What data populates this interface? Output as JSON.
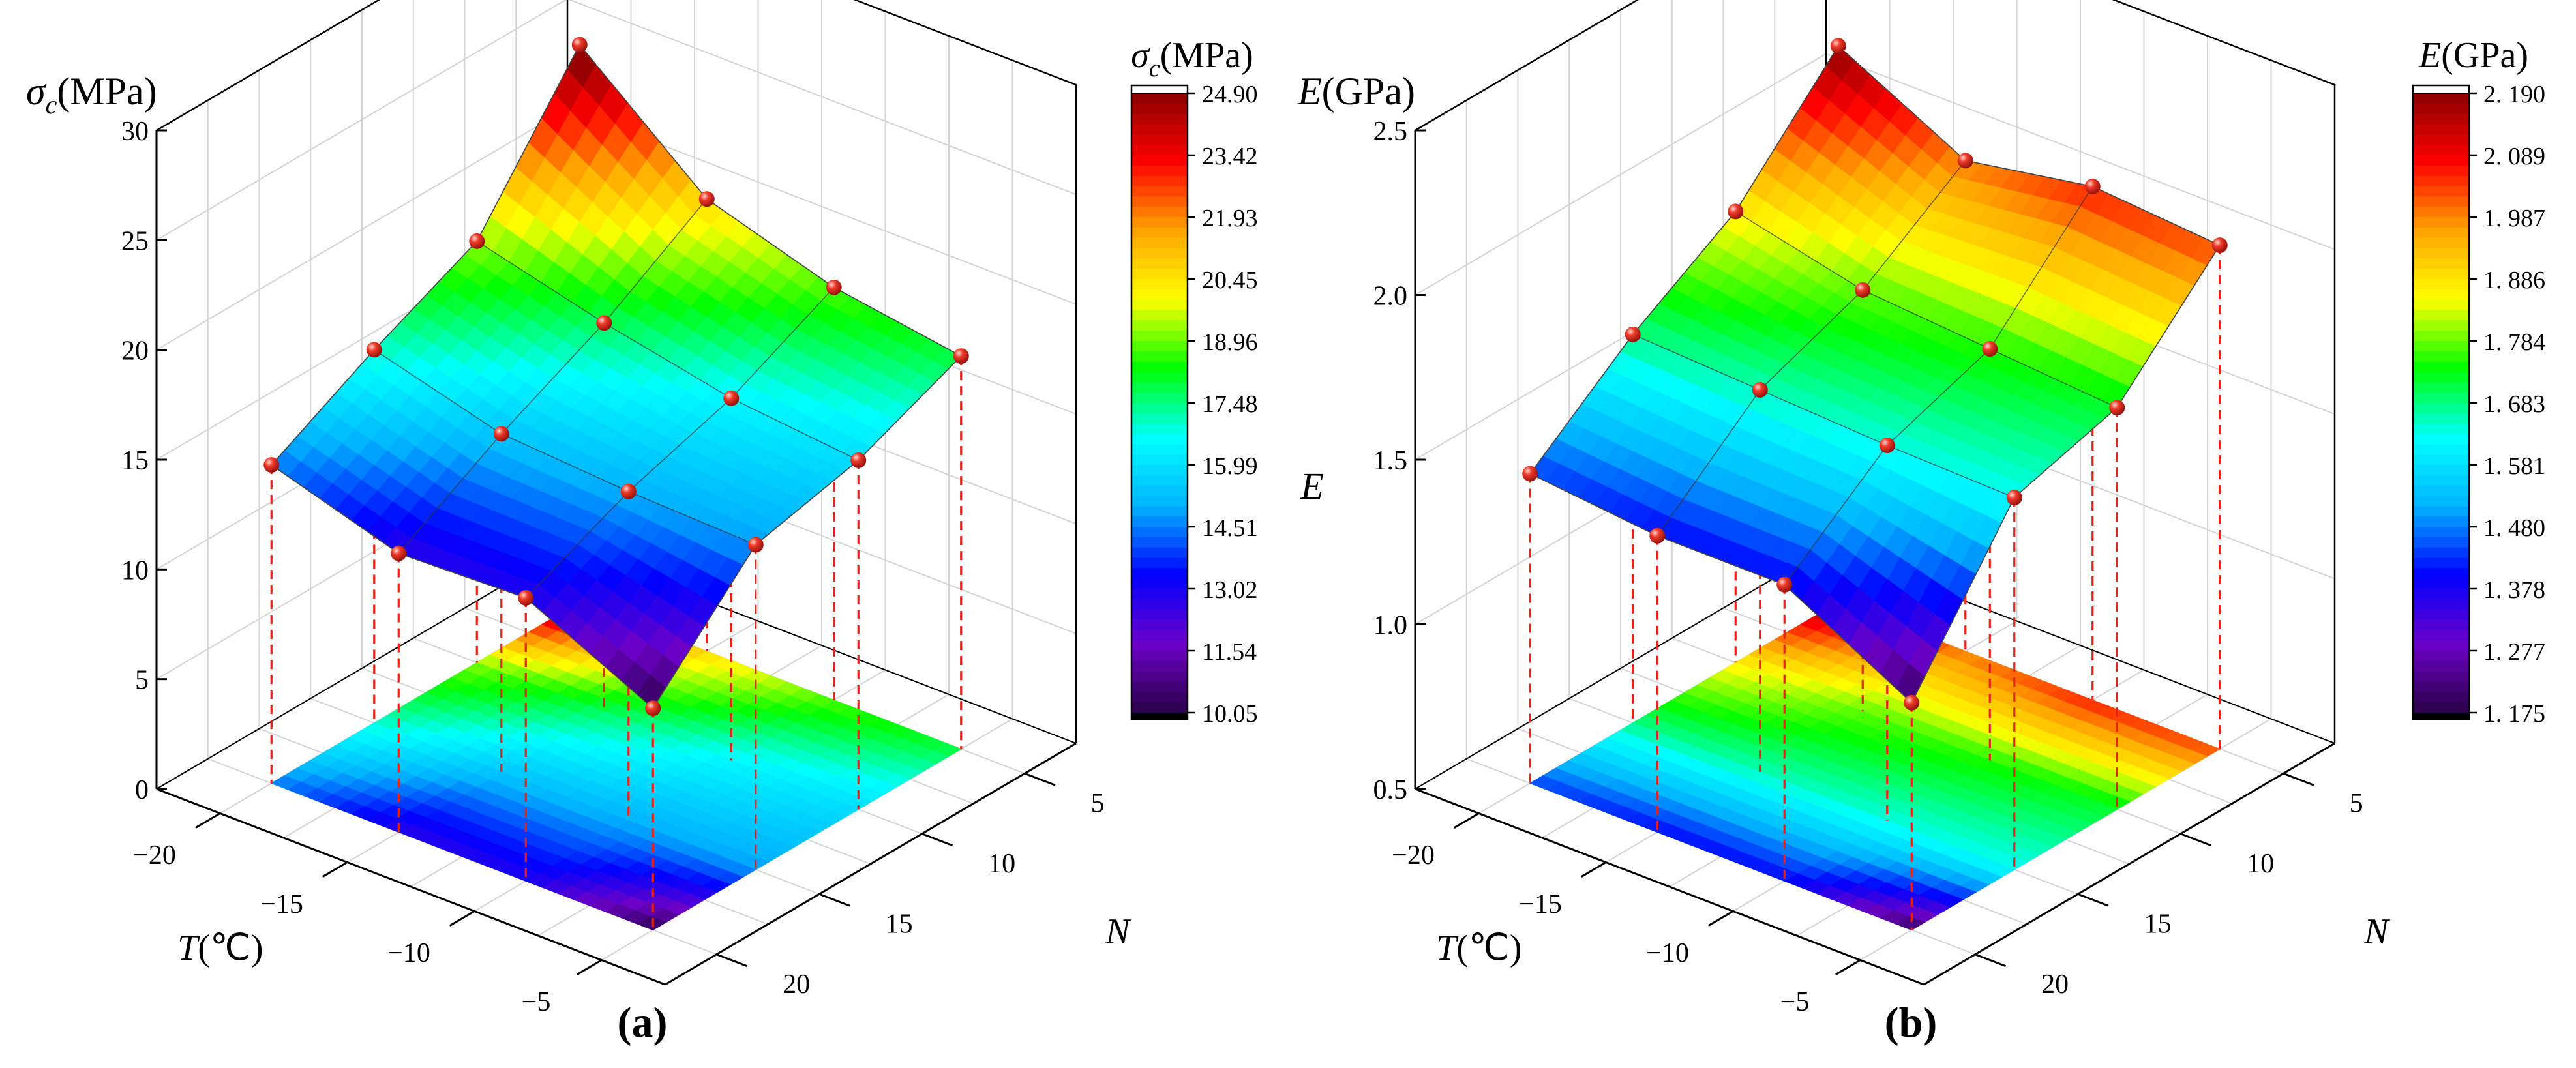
{
  "chart_data": [
    {
      "type": "surface3d",
      "panel_label": "(a)",
      "z_axis_label": {
        "sym": "σ",
        "sub": "c",
        "unit": "(MPa)"
      },
      "colorbar_title": {
        "sym": "σ",
        "sub": "c",
        "unit": "(MPa)"
      },
      "x_axis_label": {
        "sym": "T",
        "unit": "(℃)"
      },
      "y_axis_label": {
        "sym": "N",
        "unit": ""
      },
      "x_ticks": [
        "−20",
        "−15",
        "−10",
        "−5"
      ],
      "y_ticks": [
        "5",
        "10",
        "15",
        "20"
      ],
      "z_ticks": [
        "0",
        "5",
        "10",
        "15",
        "20",
        "25",
        "30"
      ],
      "zlim": [
        0,
        30
      ],
      "T": [
        -20,
        -15,
        -10,
        -5
      ],
      "N": [
        5,
        10,
        15,
        20
      ],
      "values": [
        [
          25.4,
          19.2,
          17.0,
          14.5
        ],
        [
          20.6,
          17.7,
          15.4,
          12.7
        ],
        [
          18.8,
          16.5,
          15.0,
          12.9
        ],
        [
          17.9,
          15.9,
          14.8,
          10.1
        ]
      ],
      "colorbar_ticks": [
        "24.90",
        "23.42",
        "21.93",
        "20.45",
        "18.96",
        "17.48",
        "15.99",
        "14.51",
        "13.02",
        "11.54",
        "10.05"
      ],
      "colorbar_range": [
        10.05,
        24.9
      ]
    },
    {
      "type": "surface3d",
      "panel_label": "(b)",
      "z_axis_label": {
        "sym": "E",
        "sub": "",
        "unit": "(GPa)"
      },
      "z_side_label": "E",
      "colorbar_title": {
        "sym": "E",
        "sub": "",
        "unit": "(GPa)"
      },
      "x_axis_label": {
        "sym": "T",
        "unit": "(℃)"
      },
      "y_axis_label": {
        "sym": "N",
        "unit": ""
      },
      "x_ticks": [
        "−20",
        "−15",
        "−10",
        "−5"
      ],
      "y_ticks": [
        "5",
        "10",
        "15",
        "20"
      ],
      "z_ticks": [
        "0.5",
        "1.0",
        "1.5",
        "2.0",
        "2.5"
      ],
      "zlim": [
        0.5,
        2.5
      ],
      "T": [
        -20,
        -15,
        -10,
        -5
      ],
      "N": [
        5,
        10,
        15,
        20
      ],
      "values": [
        [
          2.19,
          1.87,
          1.68,
          1.44
        ],
        [
          1.99,
          1.78,
          1.66,
          1.4
        ],
        [
          2.06,
          1.75,
          1.64,
          1.4
        ],
        [
          2.03,
          1.72,
          1.63,
          1.19
        ]
      ],
      "colorbar_ticks": [
        "2. 190",
        "2. 089",
        "1. 987",
        "1. 886",
        "1. 784",
        "1. 683",
        "1. 581",
        "1. 480",
        "1. 378",
        "1. 277",
        "1. 175"
      ],
      "colorbar_range": [
        1.175,
        2.19
      ]
    }
  ],
  "colors": {
    "colormap": [
      "#2a0047",
      "#6b00c8",
      "#0000ff",
      "#00b4ff",
      "#00ffff",
      "#00ff00",
      "#ffff00",
      "#ffa500",
      "#ff0000",
      "#8b0000"
    ],
    "marker": "#e8221b",
    "dropline": "#e8221b",
    "grid": "#d4d4d4",
    "axis": "#000000"
  }
}
